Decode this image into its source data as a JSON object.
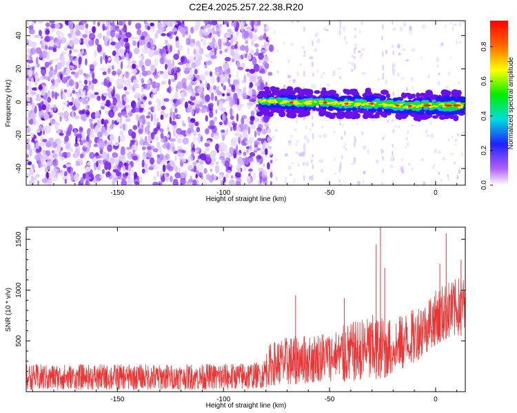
{
  "chart_data": [
    {
      "type": "heatmap",
      "title": "C2E4.2025.257.22.38.R20",
      "xlabel": "Height of straight line (km)",
      "ylabel": "Frequency (Hz)",
      "xlim": [
        -193,
        14
      ],
      "ylim": [
        -50,
        49
      ],
      "x_ticks": [
        -150,
        -100,
        -50,
        0
      ],
      "x_tick_labels": [
        "-150",
        "-100",
        "-50",
        "0"
      ],
      "y_ticks": [
        -40,
        -20,
        0,
        20,
        40
      ],
      "y_tick_labels": [
        "-40",
        "-20",
        "0",
        "20",
        "40"
      ],
      "colorbar": {
        "label": "Normalized spectral amplitude",
        "range": [
          0,
          0.95
        ],
        "ticks": [
          0,
          0.2,
          0.4,
          0.6,
          0.8
        ],
        "tick_labels": [
          "0.0",
          "0.2",
          "0.4",
          "0.6",
          "0.8"
        ],
        "colormap": "rainbow (white-violet-blue-cyan-green-yellow-red)"
      },
      "noise_region_end_km": -80,
      "signal_ridge": [
        {
          "x": -83,
          "y": 0.5
        },
        {
          "x": -75,
          "y": 0.5
        },
        {
          "x": -65,
          "y": -0.5
        },
        {
          "x": -55,
          "y": 0
        },
        {
          "x": -45,
          "y": -1
        },
        {
          "x": -35,
          "y": -1
        },
        {
          "x": -25,
          "y": -1
        },
        {
          "x": -15,
          "y": -2.5
        },
        {
          "x": -5,
          "y": -2
        },
        {
          "x": 5,
          "y": -2
        },
        {
          "x": 13,
          "y": -2
        }
      ]
    },
    {
      "type": "line",
      "xlabel": "Height of straight line (km)",
      "ylabel": "SNR (10 * v/v)",
      "xlim": [
        -193,
        14
      ],
      "ylim": [
        0,
        1620
      ],
      "color": "#ee3333",
      "x_ticks": [
        -150,
        -100,
        -50,
        0
      ],
      "x_tick_labels": [
        "-150",
        "-100",
        "-50",
        "0"
      ],
      "y_ticks": [
        500,
        1000,
        1500
      ],
      "y_tick_labels": [
        "500",
        "1000",
        "1500"
      ],
      "envelope": [
        {
          "x": -193,
          "low": 20,
          "high": 270
        },
        {
          "x": -150,
          "low": 20,
          "high": 270
        },
        {
          "x": -120,
          "low": 20,
          "high": 270
        },
        {
          "x": -100,
          "low": 20,
          "high": 280
        },
        {
          "x": -82,
          "low": 30,
          "high": 290
        },
        {
          "x": -78,
          "low": 60,
          "high": 480
        },
        {
          "x": -70,
          "low": 70,
          "high": 540
        },
        {
          "x": -60,
          "low": 80,
          "high": 560
        },
        {
          "x": -50,
          "low": 90,
          "high": 600
        },
        {
          "x": -40,
          "low": 100,
          "high": 680
        },
        {
          "x": -30,
          "low": 120,
          "high": 760
        },
        {
          "x": -20,
          "low": 150,
          "high": 720
        },
        {
          "x": -10,
          "low": 280,
          "high": 820
        },
        {
          "x": 0,
          "low": 460,
          "high": 1000
        },
        {
          "x": 5,
          "low": 520,
          "high": 1080
        },
        {
          "x": 14,
          "low": 560,
          "high": 1150
        }
      ],
      "spikes": [
        {
          "x": -66,
          "y": 950
        },
        {
          "x": -43,
          "y": 920
        },
        {
          "x": -26,
          "y": 1620
        },
        {
          "x": -28,
          "y": 1450
        },
        {
          "x": -24,
          "y": 1220
        },
        {
          "x": 2,
          "y": 1260
        },
        {
          "x": 5,
          "y": 1560
        },
        {
          "x": 12,
          "y": 1300
        }
      ]
    }
  ]
}
